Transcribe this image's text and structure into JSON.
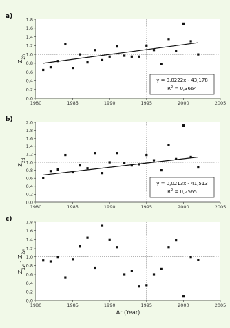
{
  "chart_data": [
    {
      "type": "scatter",
      "panel": "a)",
      "ylabel": "Z_2h",
      "ylabel_main": "Z",
      "ylabel_sub": "2h",
      "xlim": [
        1980,
        2005
      ],
      "ylim": [
        0,
        1.8
      ],
      "xticks": [
        "1980",
        "1985",
        "1990",
        "1995",
        "2000",
        "2005"
      ],
      "yticks": [
        "0.0",
        "0.2",
        "0.4",
        "0.6",
        "0.8",
        "1.0",
        "1.2",
        "1.4",
        "1.6",
        "1.8"
      ],
      "x": [
        1981,
        1982,
        1983,
        1984,
        1985,
        1986,
        1987,
        1988,
        1989,
        1990,
        1991,
        1992,
        1993,
        1994,
        1995,
        1996,
        1997,
        1998,
        1999,
        2000,
        2001,
        2002
      ],
      "y": [
        0.65,
        0.71,
        0.85,
        1.23,
        0.68,
        1.0,
        0.82,
        1.1,
        0.87,
        0.95,
        1.18,
        0.97,
        0.95,
        0.95,
        1.2,
        1.1,
        0.78,
        1.35,
        1.08,
        1.7,
        1.3,
        1.0
      ],
      "trend": {
        "slope": 0.0222,
        "intercept": -43.178,
        "x_range": [
          1981,
          2002
        ]
      },
      "equation": "y = 0.0222x - 43,178",
      "r2_label": "R",
      "r2_value": " = 0,3664",
      "ref_hline": 1.0,
      "ref_vline": 1995
    },
    {
      "type": "scatter",
      "panel": "b)",
      "ylabel": "Z_2d",
      "ylabel_main": "Z",
      "ylabel_sub": "2d",
      "xlim": [
        1980,
        2005
      ],
      "ylim": [
        0,
        2.0
      ],
      "xticks": [
        "1980",
        "1985",
        "1990",
        "1995",
        "2000",
        "2005"
      ],
      "yticks": [
        "0.0",
        "0.2",
        "0.4",
        "0.6",
        "0.8",
        "1.0",
        "1.2",
        "1.4",
        "1.6",
        "1.8",
        "2.0"
      ],
      "x": [
        1981,
        1982,
        1983,
        1984,
        1985,
        1986,
        1987,
        1988,
        1989,
        1990,
        1991,
        1992,
        1993,
        1994,
        1995,
        1996,
        1997,
        1998,
        1999,
        2000,
        2001,
        2002
      ],
      "y": [
        0.6,
        0.78,
        0.82,
        1.18,
        0.75,
        0.92,
        0.85,
        1.23,
        0.73,
        1.0,
        1.23,
        0.98,
        0.92,
        0.95,
        1.18,
        1.05,
        0.8,
        1.43,
        1.08,
        1.92,
        1.13,
        0.87
      ],
      "trend": {
        "slope": 0.0213,
        "intercept": -41.513,
        "x_range": [
          1981,
          2002
        ]
      },
      "equation": "y = 0,0213x - 41,513",
      "r2_label": "R",
      "r2_value": " = 0,2565",
      "ref_hline": 1.0,
      "ref_vline": 1995
    },
    {
      "type": "scatter",
      "panel": "c)",
      "ylabel": "Z_1w - Z_2w",
      "ylabel_main": "Z",
      "ylabel_sub": "1w",
      "ylabel_mid": " - Z",
      "ylabel_sub2": "2w",
      "xlabel": "Ár (Year)",
      "xlim": [
        1980,
        2005
      ],
      "ylim": [
        0,
        1.8
      ],
      "xticks": [
        "1980",
        "1985",
        "1990",
        "1995",
        "2000",
        "2005"
      ],
      "yticks": [
        "0.0",
        "0.2",
        "0.4",
        "0.6",
        "0.8",
        "1.0",
        "1.2",
        "1.4",
        "1.6",
        "1.8"
      ],
      "x": [
        1981,
        1982,
        1983,
        1984,
        1985,
        1986,
        1987,
        1988,
        1989,
        1990,
        1991,
        1992,
        1993,
        1994,
        1995,
        1996,
        1997,
        1998,
        1999,
        2000,
        2001,
        2002
      ],
      "y": [
        0.92,
        0.9,
        1.0,
        0.52,
        0.95,
        1.25,
        1.45,
        0.75,
        1.72,
        1.4,
        1.22,
        0.6,
        0.68,
        0.32,
        0.35,
        0.6,
        0.72,
        1.22,
        1.38,
        0.1,
        1.0,
        0.93
      ],
      "ref_hline": 1.0,
      "ref_vline": 1995
    }
  ],
  "colors": {
    "background": "#f1f9e8",
    "plot_area": "#ffffff",
    "point": "#111111",
    "trend": "#111111",
    "reference_line": "#888888",
    "axes": "#333333"
  }
}
